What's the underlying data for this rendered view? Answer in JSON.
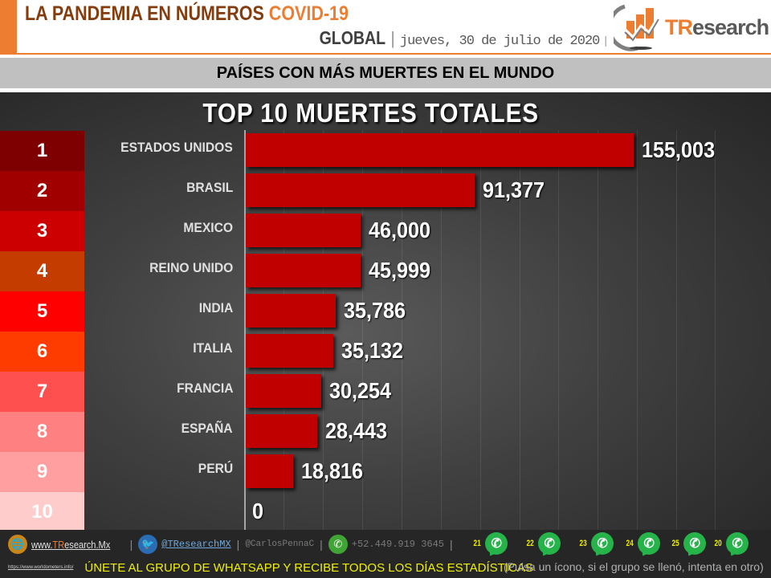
{
  "header": {
    "title_main": "LA PANDEMIA EN NÚMEROS ",
    "title_accent": "COVID-19",
    "scope": "GLOBAL",
    "date": "jueves, 30 de julio de 2020",
    "separator": "|",
    "logo_text_prefix": "TR",
    "logo_text_suffix": "esearch"
  },
  "subtitle": "PAÍSES CON MÁS MUERTES EN EL MUNDO",
  "colors": {
    "header_accent": "#ed7d31",
    "title_brown": "#843c0c",
    "bar": "#c00000",
    "rank_colors": [
      "#7f0000",
      "#a00000",
      "#cc0000",
      "#c43c00",
      "#ff0000",
      "#ff3c00",
      "#ff5050",
      "#ff8080",
      "#ff9f9f",
      "#ffcccc"
    ]
  },
  "chart_data": {
    "type": "bar",
    "orientation": "horizontal",
    "title": "TOP 10 MUERTES TOTALES",
    "xlabel": "",
    "ylabel": "",
    "categories": [
      "ESTADOS UNIDOS",
      "BRASIL",
      "MEXICO",
      "REINO UNIDO",
      "INDIA",
      "ITALIA",
      "FRANCIA",
      "ESPAÑA",
      "PERÚ",
      ""
    ],
    "ranks": [
      "1",
      "2",
      "3",
      "4",
      "5",
      "6",
      "7",
      "8",
      "9",
      "10"
    ],
    "values": [
      155003,
      91377,
      46000,
      45999,
      35786,
      35132,
      30254,
      28443,
      18816,
      0
    ],
    "value_labels": [
      "155,003",
      "91,377",
      "46,000",
      "45,999",
      "35,786",
      "35,132",
      "30,254",
      "28,443",
      "18,816",
      "0"
    ],
    "xlim": [
      0,
      200000
    ],
    "grid": true,
    "legend": "none"
  },
  "footer": {
    "website_prefix": "www.",
    "website_brand": "TR",
    "website_suffix": "esearch.Mx",
    "twitter": "@TResearchMX",
    "twitter_personal": "@CarlosPennaC",
    "phone": "+52.449.919 3645",
    "separator": "|",
    "whatsapp_groups": [
      "21",
      "22",
      "23",
      "24",
      "25",
      "20"
    ],
    "source_link": "https://www.worldometers.info/",
    "join_text": "ÚNETE AL GRUPO DE WHATSAPP Y RECIBE TODOS LOS DÍAS ESTADÍSTICAS",
    "hint_text": "(Pulsa un ícono, si el grupo se llenó, intenta en otro)"
  }
}
